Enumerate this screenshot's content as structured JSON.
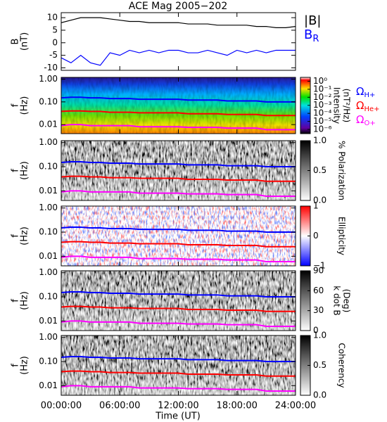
{
  "chart_data": [
    {
      "type": "line",
      "title": "ACE Mag 2005−202",
      "ylabel": [
        "B",
        "(nT)"
      ],
      "x": [
        0,
        1,
        2,
        3,
        4,
        5,
        6,
        7,
        8,
        9,
        10,
        11,
        12,
        13,
        14,
        15,
        16,
        17,
        18,
        19,
        20,
        21,
        22,
        23,
        24
      ],
      "xlim": [
        0,
        24
      ],
      "ylim": [
        -11,
        12
      ],
      "yticks": [
        -10,
        -5,
        0,
        5,
        10
      ],
      "series": [
        {
          "name": "|B|",
          "color": "#000000",
          "values": [
            8,
            9,
            10,
            10,
            10,
            9.5,
            9,
            8.5,
            8.5,
            8,
            8,
            8,
            8,
            7.5,
            7.5,
            7.5,
            7,
            7,
            7,
            7,
            6.5,
            6.5,
            6,
            6,
            6.5
          ]
        },
        {
          "name": "BR",
          "color": "#0000ff",
          "values": [
            -6,
            -8,
            -5,
            -8,
            -9,
            -4,
            -5,
            -3,
            -4,
            -3,
            -4,
            -3,
            -3,
            -4,
            -4,
            -3,
            -4,
            -5,
            -3,
            -4,
            -3,
            -4,
            -3,
            -3,
            -3
          ]
        }
      ]
    },
    {
      "type": "spectrogram",
      "colormap": "rainbow",
      "ylabel": [
        "f",
        "(Hz)"
      ],
      "x": [
        0,
        1,
        2,
        3,
        4,
        5,
        6,
        7,
        8,
        9,
        10,
        11,
        12,
        13,
        14,
        15,
        16,
        17,
        18,
        19,
        20,
        21,
        22,
        23,
        24
      ],
      "xlim": [
        0,
        24
      ],
      "ylim": [
        0.004,
        1.2
      ],
      "yscale": "log",
      "yticks": [
        {
          "value": 1,
          "label": "1.00"
        },
        {
          "value": 0.1,
          "label": "0.10"
        },
        0.01
      ],
      "series": [
        {
          "name": "ΩH+",
          "color": "#0000ff",
          "values": [
            0.15,
            0.16,
            0.16,
            0.15,
            0.15,
            0.14,
            0.14,
            0.14,
            0.13,
            0.13,
            0.13,
            0.13,
            0.13,
            0.12,
            0.12,
            0.12,
            0.12,
            0.11,
            0.11,
            0.11,
            0.11,
            0.1,
            0.1,
            0.1,
            0.1
          ]
        },
        {
          "name": "ΩHe+",
          "color": "#ff0000",
          "values": [
            0.038,
            0.04,
            0.04,
            0.038,
            0.038,
            0.035,
            0.035,
            0.035,
            0.033,
            0.033,
            0.033,
            0.033,
            0.033,
            0.03,
            0.03,
            0.03,
            0.03,
            0.028,
            0.028,
            0.028,
            0.028,
            0.025,
            0.025,
            0.025,
            0.025
          ]
        },
        {
          "name": "ΩO+",
          "color": "#ff00ff",
          "values": [
            0.009,
            0.01,
            0.01,
            0.009,
            0.009,
            0.009,
            0.009,
            0.009,
            0.008,
            0.008,
            0.008,
            0.008,
            0.008,
            0.0075,
            0.0075,
            0.0075,
            0.0075,
            0.007,
            0.007,
            0.007,
            0.007,
            0.006,
            0.006,
            0.006,
            0.006
          ]
        }
      ],
      "colorbar": {
        "label": [
          "Intensity",
          "(nT²/Hz)"
        ],
        "lim": [
          3e-07,
          3
        ],
        "scale": "log",
        "ticks": [
          {
            "value": 1,
            "label": "10⁰"
          },
          {
            "value": 0.1,
            "label": "10⁻¹"
          },
          {
            "value": 0.01,
            "label": "10⁻²"
          },
          {
            "value": 0.001,
            "label": "10⁻³"
          },
          {
            "value": 0.0001,
            "label": "10⁻⁴"
          },
          {
            "value": 1e-05,
            "label": "10⁻⁵"
          },
          {
            "value": 1e-06,
            "label": "10⁻⁶"
          }
        ]
      }
    },
    {
      "type": "spectrogram",
      "colormap": "gray",
      "ylabel": [
        "f",
        "(Hz)"
      ],
      "x": [
        0,
        1,
        2,
        3,
        4,
        5,
        6,
        7,
        8,
        9,
        10,
        11,
        12,
        13,
        14,
        15,
        16,
        17,
        18,
        19,
        20,
        21,
        22,
        23,
        24
      ],
      "xlim": [
        0,
        24
      ],
      "ylim": [
        0.004,
        1.2
      ],
      "yscale": "log",
      "yticks": [
        {
          "value": 1,
          "label": "1.00"
        },
        {
          "value": 0.1,
          "label": "0.10"
        },
        0.01
      ],
      "series": [
        {
          "color": "#0000ff",
          "values": [
            0.15,
            0.16,
            0.16,
            0.15,
            0.15,
            0.14,
            0.14,
            0.14,
            0.13,
            0.13,
            0.13,
            0.13,
            0.13,
            0.12,
            0.12,
            0.12,
            0.12,
            0.11,
            0.11,
            0.11,
            0.11,
            0.1,
            0.1,
            0.1,
            0.1
          ]
        },
        {
          "color": "#ff0000",
          "values": [
            0.038,
            0.04,
            0.04,
            0.038,
            0.038,
            0.035,
            0.035,
            0.035,
            0.033,
            0.033,
            0.033,
            0.033,
            0.033,
            0.03,
            0.03,
            0.03,
            0.03,
            0.028,
            0.028,
            0.028,
            0.028,
            0.025,
            0.025,
            0.025,
            0.025
          ]
        },
        {
          "color": "#ff00ff",
          "values": [
            0.009,
            0.01,
            0.01,
            0.009,
            0.009,
            0.009,
            0.009,
            0.009,
            0.008,
            0.008,
            0.008,
            0.008,
            0.008,
            0.0075,
            0.0075,
            0.0075,
            0.0075,
            0.007,
            0.007,
            0.007,
            0.007,
            0.006,
            0.006,
            0.006,
            0.006
          ]
        }
      ],
      "colorbar": {
        "label": [
          "% Polarization"
        ],
        "lim": [
          0,
          1
        ],
        "scale": "linear",
        "ticks": [
          {
            "value": 1,
            "label": "1.0"
          },
          0.5,
          {
            "value": 0,
            "label": "0.0"
          }
        ]
      }
    },
    {
      "type": "spectrogram",
      "colormap": "bwr",
      "ylabel": [
        "f",
        "(Hz)"
      ],
      "x": [
        0,
        1,
        2,
        3,
        4,
        5,
        6,
        7,
        8,
        9,
        10,
        11,
        12,
        13,
        14,
        15,
        16,
        17,
        18,
        19,
        20,
        21,
        22,
        23,
        24
      ],
      "xlim": [
        0,
        24
      ],
      "ylim": [
        0.004,
        1.2
      ],
      "yscale": "log",
      "yticks": [
        {
          "value": 1,
          "label": "1.00"
        },
        {
          "value": 0.1,
          "label": "0.10"
        },
        0.01
      ],
      "series": [
        {
          "color": "#0000ff",
          "values": [
            0.15,
            0.16,
            0.16,
            0.15,
            0.15,
            0.14,
            0.14,
            0.14,
            0.13,
            0.13,
            0.13,
            0.13,
            0.13,
            0.12,
            0.12,
            0.12,
            0.12,
            0.11,
            0.11,
            0.11,
            0.11,
            0.1,
            0.1,
            0.1,
            0.1
          ]
        },
        {
          "color": "#ff0000",
          "values": [
            0.038,
            0.04,
            0.04,
            0.038,
            0.038,
            0.035,
            0.035,
            0.035,
            0.033,
            0.033,
            0.033,
            0.033,
            0.033,
            0.03,
            0.03,
            0.03,
            0.03,
            0.028,
            0.028,
            0.028,
            0.028,
            0.025,
            0.025,
            0.025,
            0.025
          ]
        },
        {
          "color": "#ff00ff",
          "values": [
            0.009,
            0.01,
            0.01,
            0.009,
            0.009,
            0.009,
            0.009,
            0.009,
            0.008,
            0.008,
            0.008,
            0.008,
            0.008,
            0.0075,
            0.0075,
            0.0075,
            0.0075,
            0.007,
            0.007,
            0.007,
            0.007,
            0.006,
            0.006,
            0.006,
            0.006
          ]
        }
      ],
      "colorbar": {
        "label": [
          "Ellipticity"
        ],
        "lim": [
          -1,
          1
        ],
        "scale": "linear",
        "ticks": [
          1,
          0,
          {
            "value": -1,
            "label": "−1"
          }
        ]
      }
    },
    {
      "type": "spectrogram",
      "colormap": "gray",
      "ylabel": [
        "f",
        "(Hz)"
      ],
      "x": [
        0,
        1,
        2,
        3,
        4,
        5,
        6,
        7,
        8,
        9,
        10,
        11,
        12,
        13,
        14,
        15,
        16,
        17,
        18,
        19,
        20,
        21,
        22,
        23,
        24
      ],
      "xlim": [
        0,
        24
      ],
      "ylim": [
        0.004,
        1.2
      ],
      "yscale": "log",
      "yticks": [
        {
          "value": 1,
          "label": "1.00"
        },
        {
          "value": 0.1,
          "label": "0.10"
        },
        0.01
      ],
      "series": [
        {
          "color": "#0000ff",
          "values": [
            0.15,
            0.16,
            0.16,
            0.15,
            0.15,
            0.14,
            0.14,
            0.14,
            0.13,
            0.13,
            0.13,
            0.13,
            0.13,
            0.12,
            0.12,
            0.12,
            0.12,
            0.11,
            0.11,
            0.11,
            0.11,
            0.1,
            0.1,
            0.1,
            0.1
          ]
        },
        {
          "color": "#ff0000",
          "values": [
            0.038,
            0.04,
            0.04,
            0.038,
            0.038,
            0.035,
            0.035,
            0.035,
            0.033,
            0.033,
            0.033,
            0.033,
            0.033,
            0.03,
            0.03,
            0.03,
            0.03,
            0.028,
            0.028,
            0.028,
            0.028,
            0.025,
            0.025,
            0.025,
            0.025
          ]
        },
        {
          "color": "#ff00ff",
          "values": [
            0.009,
            0.01,
            0.01,
            0.009,
            0.009,
            0.009,
            0.009,
            0.009,
            0.008,
            0.008,
            0.008,
            0.008,
            0.008,
            0.0075,
            0.0075,
            0.0075,
            0.0075,
            0.007,
            0.007,
            0.007,
            0.007,
            0.006,
            0.006,
            0.006,
            0.006
          ]
        }
      ],
      "colorbar": {
        "label": [
          "k dot B",
          "(Deg)"
        ],
        "lim": [
          0,
          90
        ],
        "scale": "linear",
        "ticks": [
          90,
          60,
          30,
          0
        ]
      }
    },
    {
      "type": "spectrogram",
      "colormap": "gray",
      "ylabel": [
        "f",
        "(Hz)"
      ],
      "x": [
        0,
        1,
        2,
        3,
        4,
        5,
        6,
        7,
        8,
        9,
        10,
        11,
        12,
        13,
        14,
        15,
        16,
        17,
        18,
        19,
        20,
        21,
        22,
        23,
        24
      ],
      "xlim": [
        0,
        24
      ],
      "ylim": [
        0.004,
        1.2
      ],
      "yscale": "log",
      "yticks": [
        {
          "value": 1,
          "label": "1.00"
        },
        {
          "value": 0.1,
          "label": "0.10"
        },
        0.01
      ],
      "series": [
        {
          "color": "#0000ff",
          "values": [
            0.15,
            0.16,
            0.16,
            0.15,
            0.15,
            0.14,
            0.14,
            0.14,
            0.13,
            0.13,
            0.13,
            0.13,
            0.13,
            0.12,
            0.12,
            0.12,
            0.12,
            0.11,
            0.11,
            0.11,
            0.11,
            0.1,
            0.1,
            0.1,
            0.1
          ]
        },
        {
          "color": "#ff0000",
          "values": [
            0.038,
            0.04,
            0.04,
            0.038,
            0.038,
            0.035,
            0.035,
            0.035,
            0.033,
            0.033,
            0.033,
            0.033,
            0.033,
            0.03,
            0.03,
            0.03,
            0.03,
            0.028,
            0.028,
            0.028,
            0.028,
            0.025,
            0.025,
            0.025,
            0.025
          ]
        },
        {
          "color": "#ff00ff",
          "values": [
            0.009,
            0.01,
            0.01,
            0.009,
            0.009,
            0.009,
            0.009,
            0.009,
            0.008,
            0.008,
            0.008,
            0.008,
            0.008,
            0.0075,
            0.0075,
            0.0075,
            0.0075,
            0.007,
            0.007,
            0.007,
            0.007,
            0.006,
            0.006,
            0.006,
            0.006
          ]
        }
      ],
      "colorbar": {
        "label": [
          "Coherency"
        ],
        "lim": [
          0,
          1
        ],
        "scale": "linear",
        "ticks": [
          {
            "value": 1,
            "label": "1.0"
          },
          0.5,
          {
            "value": 0,
            "label": "0.0"
          }
        ]
      },
      "xticks": [
        {
          "value": 0,
          "label": "00:00:00"
        },
        {
          "value": 6,
          "label": "06:00:00"
        },
        {
          "value": 12,
          "label": "12:00:00"
        },
        {
          "value": 18,
          "label": "18:00:00"
        },
        {
          "value": 24,
          "label": "24:00:00"
        }
      ],
      "xlabel": "Time (UT)"
    }
  ]
}
